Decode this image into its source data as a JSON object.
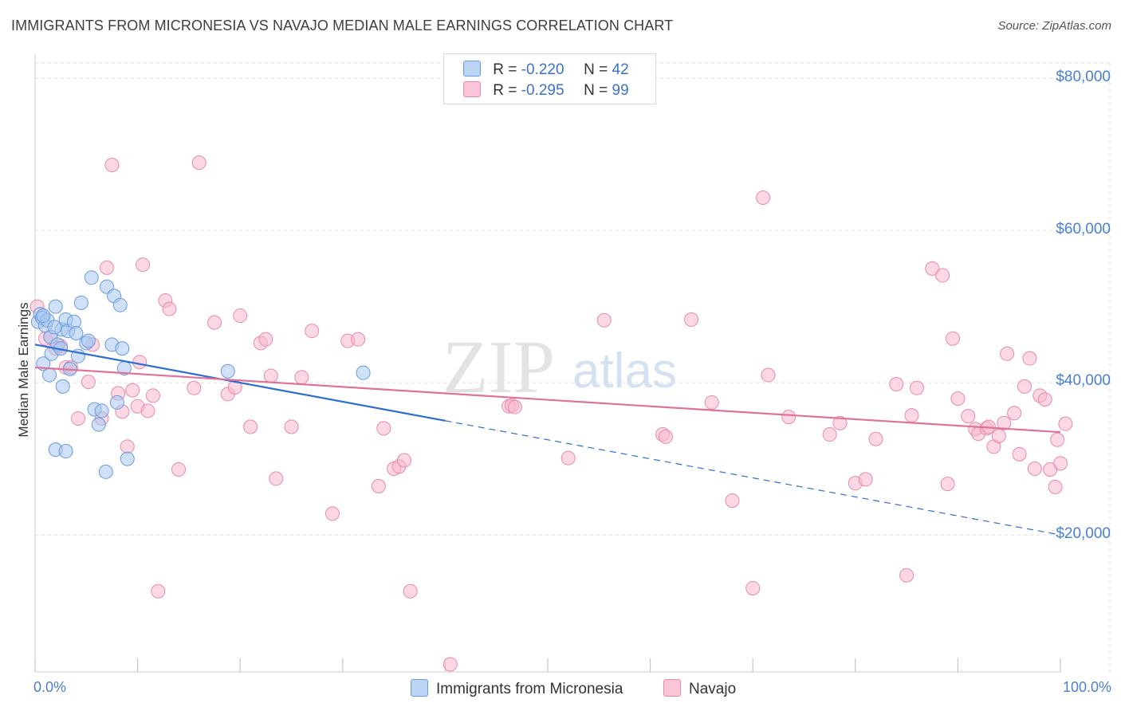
{
  "header": {
    "title": "IMMIGRANTS FROM MICRONESIA VS NAVAJO MEDIAN MALE EARNINGS CORRELATION CHART",
    "source": "Source: ZipAtlas.com"
  },
  "legend": {
    "rows": [
      {
        "r_label": "R =",
        "r_value": "-0.220",
        "n_label": "N =",
        "n_value": "42"
      },
      {
        "r_label": "R =",
        "r_value": "-0.295",
        "n_label": "N =",
        "n_value": "99"
      }
    ],
    "series": [
      "Immigrants from Micronesia",
      "Navajo"
    ]
  },
  "watermark": {
    "zip": "ZIP",
    "atlas": "atlas"
  },
  "colors": {
    "micronesia_fill": "#a9c8f0",
    "micronesia_stroke": "#6a9be0",
    "micronesia_line": "#2d6fd1",
    "navajo_fill": "#f7b8cc",
    "navajo_stroke": "#e98aab",
    "navajo_line": "#e0729a",
    "tick_text": "#4a7fd4",
    "grid": "#dddddd"
  },
  "chart_data": {
    "type": "scatter",
    "title": "IMMIGRANTS FROM MICRONESIA VS NAVAJO MEDIAN MALE EARNINGS CORRELATION CHART",
    "xlabel": "",
    "ylabel": "Median Male Earnings",
    "xlim": [
      0,
      100
    ],
    "ylim": [
      2000,
      82000
    ],
    "x_tick_labels": [
      "0.0%",
      "100.0%"
    ],
    "y_ticks": [
      {
        "value": 80000,
        "label": "$80,000"
      },
      {
        "value": 60000,
        "label": "$60,000"
      },
      {
        "value": 40000,
        "label": "$40,000"
      },
      {
        "value": 20000,
        "label": "$20,000"
      }
    ],
    "grid": true,
    "legend_position": "top-center",
    "series": [
      {
        "name": "Immigrants from Micronesia",
        "r": -0.22,
        "n": 42,
        "trend": {
          "x0": 0,
          "y0": 45000,
          "x_solid_end": 40,
          "x1": 100,
          "y1": 20000
        },
        "points": [
          [
            0.3,
            48000
          ],
          [
            0.5,
            49000
          ],
          [
            0.7,
            48500
          ],
          [
            1.0,
            47500
          ],
          [
            1.2,
            48200
          ],
          [
            1.5,
            46000
          ],
          [
            0.8,
            42500
          ],
          [
            1.4,
            41000
          ],
          [
            1.6,
            43800
          ],
          [
            2.0,
            50000
          ],
          [
            2.2,
            45000
          ],
          [
            2.5,
            44500
          ],
          [
            2.6,
            47000
          ],
          [
            2.7,
            39500
          ],
          [
            3.0,
            48300
          ],
          [
            3.2,
            46800
          ],
          [
            3.4,
            41800
          ],
          [
            3.8,
            48000
          ],
          [
            4.0,
            46500
          ],
          [
            4.2,
            43500
          ],
          [
            4.5,
            50500
          ],
          [
            5.0,
            45200
          ],
          [
            5.2,
            45500
          ],
          [
            5.5,
            53800
          ],
          [
            5.8,
            36500
          ],
          [
            6.2,
            34500
          ],
          [
            6.5,
            36300
          ],
          [
            7.0,
            52600
          ],
          [
            7.5,
            45000
          ],
          [
            7.7,
            51400
          ],
          [
            8.0,
            37400
          ],
          [
            8.3,
            50200
          ],
          [
            8.5,
            44500
          ],
          [
            8.7,
            41900
          ],
          [
            9.0,
            30000
          ],
          [
            6.9,
            28300
          ],
          [
            2.0,
            31200
          ],
          [
            3.0,
            31000
          ],
          [
            18.8,
            41500
          ],
          [
            32.0,
            41300
          ],
          [
            0.8,
            48800
          ],
          [
            1.9,
            47300
          ]
        ]
      },
      {
        "name": "Navajo",
        "r": -0.295,
        "n": 99,
        "trend": {
          "x0": 0,
          "y0": 42000,
          "x1": 100,
          "y1": 33500
        },
        "points": [
          [
            0.2,
            50000
          ],
          [
            1.0,
            45800
          ],
          [
            2.5,
            44800
          ],
          [
            1.5,
            46000
          ],
          [
            2.0,
            44500
          ],
          [
            3.0,
            42000
          ],
          [
            3.5,
            42000
          ],
          [
            4.2,
            35300
          ],
          [
            5.2,
            40100
          ],
          [
            5.6,
            45000
          ],
          [
            6.5,
            35300
          ],
          [
            7.0,
            55100
          ],
          [
            7.5,
            68600
          ],
          [
            8.1,
            38600
          ],
          [
            8.5,
            36200
          ],
          [
            9.0,
            31600
          ],
          [
            9.5,
            39000
          ],
          [
            10.0,
            36900
          ],
          [
            10.2,
            42700
          ],
          [
            11.0,
            36300
          ],
          [
            11.5,
            38300
          ],
          [
            10.5,
            55500
          ],
          [
            12.7,
            50800
          ],
          [
            13.1,
            49700
          ],
          [
            12.0,
            12600
          ],
          [
            14.0,
            28600
          ],
          [
            15.5,
            39300
          ],
          [
            16.0,
            68900
          ],
          [
            17.5,
            47900
          ],
          [
            18.8,
            38500
          ],
          [
            19.5,
            39400
          ],
          [
            20.0,
            48800
          ],
          [
            21.0,
            34200
          ],
          [
            22.0,
            45200
          ],
          [
            22.5,
            45700
          ],
          [
            23.0,
            40900
          ],
          [
            23.5,
            27400
          ],
          [
            25.0,
            34200
          ],
          [
            26.0,
            40700
          ],
          [
            27.0,
            46800
          ],
          [
            29.0,
            22800
          ],
          [
            30.5,
            45500
          ],
          [
            31.5,
            45700
          ],
          [
            34.0,
            34000
          ],
          [
            35.0,
            28700
          ],
          [
            35.5,
            29000
          ],
          [
            36.0,
            29800
          ],
          [
            36.6,
            12600
          ],
          [
            33.5,
            26400
          ],
          [
            40.5,
            3000
          ],
          [
            46.2,
            36900
          ],
          [
            46.5,
            37000
          ],
          [
            46.8,
            36800
          ],
          [
            52.0,
            30100
          ],
          [
            55.5,
            48200
          ],
          [
            61.2,
            33200
          ],
          [
            61.5,
            32900
          ],
          [
            64.0,
            48300
          ],
          [
            66.0,
            37400
          ],
          [
            68.0,
            24500
          ],
          [
            70.0,
            13000
          ],
          [
            71.0,
            64300
          ],
          [
            71.5,
            41000
          ],
          [
            73.5,
            35500
          ],
          [
            77.5,
            33200
          ],
          [
            78.5,
            34700
          ],
          [
            80.0,
            26800
          ],
          [
            81.0,
            27300
          ],
          [
            82.0,
            32600
          ],
          [
            84.0,
            39800
          ],
          [
            85.5,
            35700
          ],
          [
            86.0,
            39300
          ],
          [
            85.0,
            14700
          ],
          [
            87.5,
            55000
          ],
          [
            88.5,
            54100
          ],
          [
            89.0,
            26700
          ],
          [
            90.0,
            37900
          ],
          [
            91.0,
            35600
          ],
          [
            91.7,
            33900
          ],
          [
            92.0,
            33300
          ],
          [
            92.8,
            34000
          ],
          [
            93.0,
            34200
          ],
          [
            93.5,
            31600
          ],
          [
            94.0,
            33000
          ],
          [
            94.5,
            34700
          ],
          [
            94.8,
            43800
          ],
          [
            95.5,
            36000
          ],
          [
            96.0,
            30600
          ],
          [
            96.5,
            39500
          ],
          [
            97.0,
            43200
          ],
          [
            97.5,
            28700
          ],
          [
            98.0,
            38300
          ],
          [
            98.5,
            37800
          ],
          [
            99.0,
            28600
          ],
          [
            99.5,
            26300
          ],
          [
            99.7,
            32500
          ],
          [
            100.0,
            29400
          ],
          [
            100.5,
            34600
          ],
          [
            89.5,
            45800
          ]
        ]
      }
    ]
  }
}
